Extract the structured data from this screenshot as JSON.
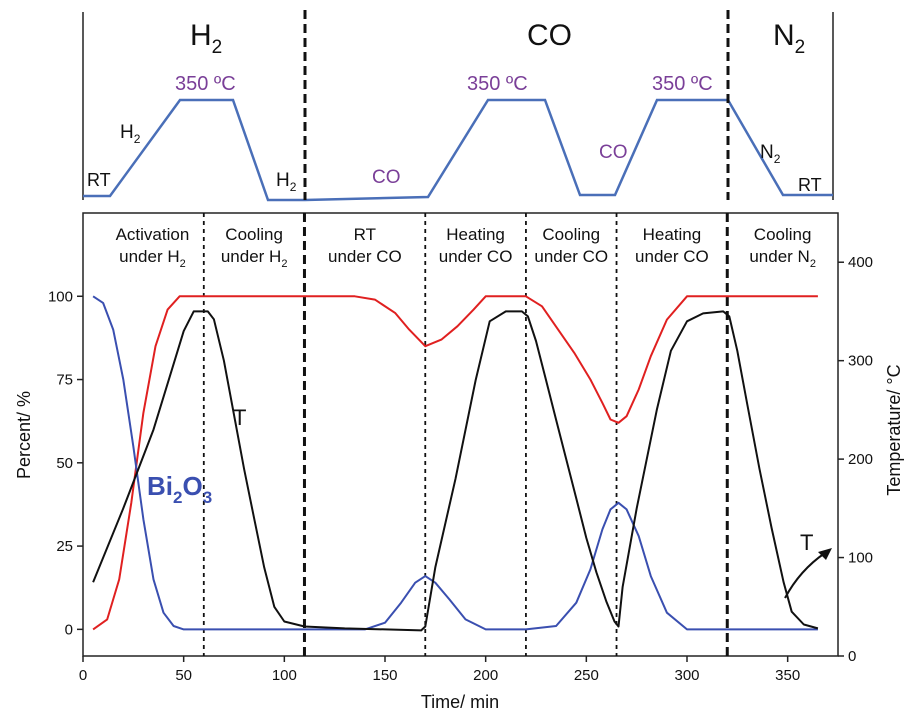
{
  "schematic": {
    "gas_labels": [
      "H",
      "CO",
      "N"
    ],
    "gas_subscripts": [
      "2",
      "",
      "2"
    ],
    "temp_labels": [
      "350 ºC",
      "350 ºC",
      "350 ºC"
    ],
    "ramp_labels": [
      "RT",
      "H",
      "H",
      "CO",
      "CO",
      "N",
      "RT"
    ],
    "ramp_subscripts": [
      "",
      "2",
      "2",
      "",
      "",
      "2",
      ""
    ],
    "color_line": "#4a6fb8",
    "color_temp_text": "#7a3f98"
  },
  "chart_data": {
    "type": "line",
    "xlabel": "Time/ min",
    "ylabel": "Percent/ %",
    "y2label": "Temperature/ °C",
    "xlim": [
      0,
      375
    ],
    "ylim": [
      -8,
      125
    ],
    "y2lim": [
      0,
      450
    ],
    "xticks": [
      0,
      50,
      100,
      150,
      200,
      250,
      300,
      350
    ],
    "yticks": [
      0,
      25,
      50,
      75,
      100
    ],
    "y2ticks": [
      0,
      100,
      200,
      300,
      400
    ],
    "grid": false,
    "phase_boundaries": [
      60,
      110,
      170,
      220,
      265,
      320
    ],
    "phase_labels": [
      {
        "line1": "Activation",
        "line2": "under H",
        "sub": "2"
      },
      {
        "line1": "Cooling",
        "line2": "under H",
        "sub": "2"
      },
      {
        "line1": "RT",
        "line2": "under CO",
        "sub": ""
      },
      {
        "line1": "Heating",
        "line2": "under CO",
        "sub": ""
      },
      {
        "line1": "Cooling",
        "line2": "under CO",
        "sub": ""
      },
      {
        "line1": "Heating",
        "line2": "under CO",
        "sub": ""
      },
      {
        "line1": "Cooling",
        "line2": "under N",
        "sub": "2"
      }
    ],
    "series": [
      {
        "name": "Bi",
        "color": "#e02020",
        "axis": "left",
        "x": [
          5,
          12,
          18,
          24,
          30,
          36,
          42,
          48,
          60,
          80,
          100,
          120,
          135,
          145,
          155,
          162,
          170,
          178,
          186,
          194,
          200,
          210,
          220,
          228,
          236,
          244,
          252,
          258,
          262,
          266,
          270,
          276,
          282,
          290,
          300,
          310,
          320,
          340,
          365
        ],
        "values": [
          0,
          3,
          15,
          38,
          65,
          85,
          96,
          100,
          100,
          100,
          100,
          100,
          100,
          99,
          95,
          90,
          85,
          87,
          91,
          96,
          100,
          100,
          100,
          97,
          90,
          83,
          75,
          68,
          63,
          62,
          64,
          72,
          82,
          93,
          100,
          100,
          100,
          100,
          100
        ]
      },
      {
        "name": "Bi₂O₃",
        "name_base": "Bi",
        "name_sub1": "2",
        "name_mid": "O",
        "name_sub2": "3",
        "color": "#3a4fb0",
        "axis": "left",
        "x": [
          5,
          10,
          15,
          20,
          25,
          30,
          35,
          40,
          45,
          50,
          60,
          80,
          100,
          120,
          140,
          150,
          158,
          165,
          170,
          175,
          182,
          190,
          200,
          220,
          235,
          245,
          252,
          258,
          262,
          266,
          270,
          276,
          282,
          290,
          300,
          320,
          365
        ],
        "values": [
          100,
          98,
          90,
          75,
          55,
          33,
          15,
          5,
          1,
          0,
          0,
          0,
          0,
          0,
          0,
          2,
          8,
          14,
          16,
          14,
          9,
          3,
          0,
          0,
          1,
          8,
          18,
          30,
          36,
          38,
          36,
          28,
          16,
          5,
          0,
          0,
          0
        ]
      },
      {
        "name": "T",
        "color": "#111111",
        "axis": "right",
        "x": [
          5,
          20,
          35,
          50,
          55,
          62,
          65,
          70,
          75,
          80,
          85,
          90,
          95,
          100,
          110,
          130,
          150,
          168,
          170,
          175,
          185,
          195,
          202,
          210,
          218,
          221,
          225,
          230,
          235,
          240,
          245,
          250,
          255,
          260,
          264,
          266,
          268,
          275,
          285,
          292,
          300,
          308,
          318,
          321,
          325,
          330,
          336,
          342,
          348,
          352,
          358,
          365
        ],
        "values": [
          75,
          150,
          230,
          330,
          350,
          350,
          342,
          300,
          245,
          190,
          140,
          90,
          50,
          35,
          30,
          28,
          27,
          26,
          30,
          90,
          180,
          280,
          340,
          350,
          350,
          345,
          320,
          280,
          240,
          200,
          160,
          120,
          85,
          55,
          35,
          30,
          70,
          150,
          250,
          310,
          340,
          348,
          350,
          345,
          310,
          255,
          190,
          130,
          75,
          45,
          32,
          28
        ]
      }
    ],
    "annotations": [
      "T",
      "T"
    ]
  }
}
